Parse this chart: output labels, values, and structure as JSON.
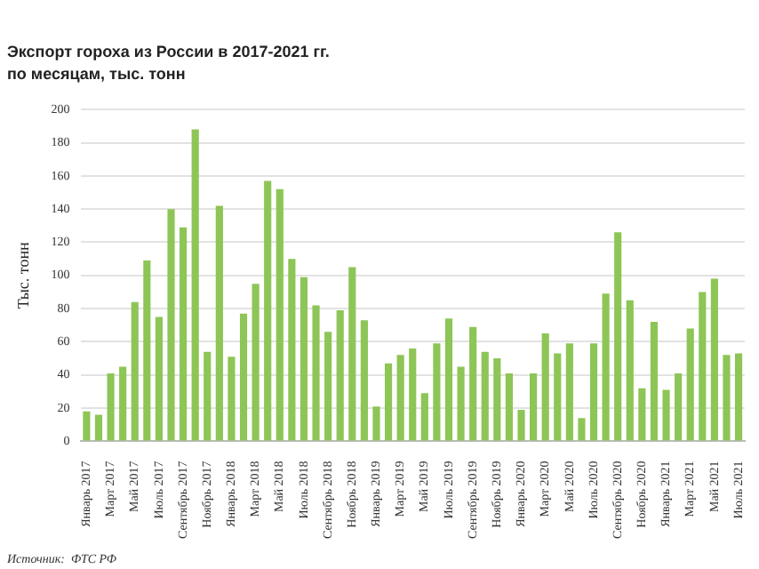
{
  "chart_data": {
    "type": "bar",
    "title": "Экспорт гороха из России в 2017-2021 гг.",
    "subtitle": "по месяцам, тыс. тонн",
    "ylabel": "Тыс. тонн",
    "categories": [
      "Январь 2017",
      null,
      "Март 2017",
      null,
      "Май 2017",
      null,
      "Июль 2017",
      null,
      "Сентябрь 2017",
      null,
      "Ноябрь 2017",
      null,
      "Январь 2018",
      null,
      "Март 2018",
      null,
      "Май 2018",
      null,
      "Июль 2018",
      null,
      "Сентябрь 2018",
      null,
      "Ноябрь 2018",
      null,
      "Январь 2019",
      null,
      "Март 2019",
      null,
      "Май 2019",
      null,
      "Июль 2019",
      null,
      "Сентябрь 2019",
      null,
      "Ноябрь 2019",
      null,
      "Январь 2020",
      null,
      "Март 2020",
      null,
      "Май 2020",
      null,
      "Июль 2020",
      null,
      "Сентябрь 2020",
      null,
      "Ноябрь 2020",
      null,
      "Январь 2021",
      null,
      "Март 2021",
      null,
      "Май 2021",
      null,
      "Июль 2021"
    ],
    "values": [
      18,
      16,
      41,
      45,
      84,
      109,
      75,
      140,
      129,
      188,
      54,
      142,
      51,
      77,
      95,
      157,
      152,
      110,
      99,
      82,
      66,
      79,
      105,
      73,
      21,
      47,
      52,
      56,
      29,
      59,
      74,
      45,
      69,
      54,
      50,
      41,
      19,
      41,
      65,
      53,
      59,
      14,
      59,
      89,
      126,
      85,
      32,
      72,
      31,
      41,
      68,
      90,
      98,
      52,
      53
    ],
    "color": "#8dc556",
    "ylim": [
      0,
      200
    ],
    "yticks": [
      0,
      20,
      40,
      60,
      80,
      100,
      120,
      140,
      160,
      180,
      200
    ],
    "grid": "y",
    "annotations": [
      "Источник:  ФТС РФ"
    ]
  }
}
